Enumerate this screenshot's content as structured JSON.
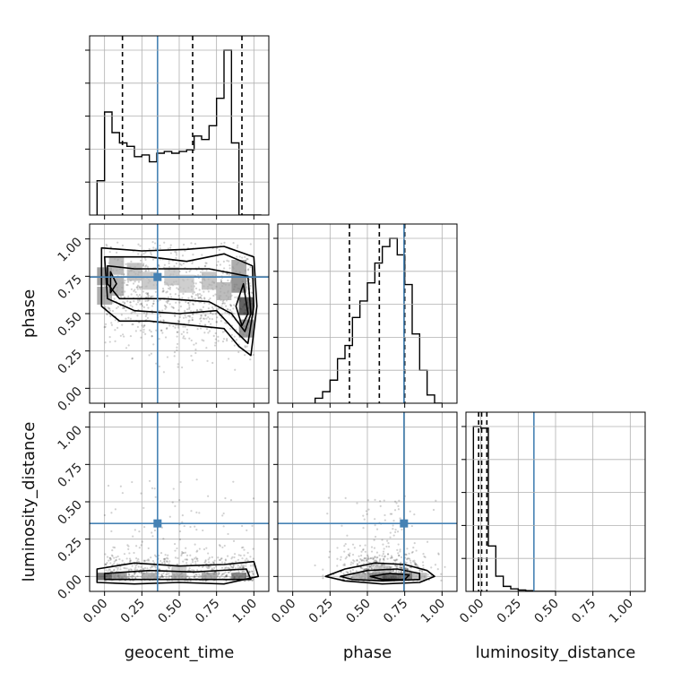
{
  "chart_data": {
    "type": "corner",
    "parameters": [
      "geocent_time",
      "phase",
      "luminosity_distance"
    ],
    "axis_range": [
      -0.1,
      1.1
    ],
    "ticks": [
      0,
      0.25,
      0.5,
      0.75,
      1
    ],
    "tick_labels": [
      "0.00",
      "0.25",
      "0.50",
      "0.75",
      "1.00"
    ],
    "xlabels": [
      "geocent_time",
      "phase",
      "luminosity_distance"
    ],
    "ylabels": [
      "",
      "phase",
      "luminosity_distance"
    ],
    "grid": true,
    "truth": {
      "color": "#4682b4",
      "values": [
        0.355,
        0.745,
        0.355
      ]
    },
    "histograms": [
      {
        "parameter": "geocent_time",
        "bin_edges": [
          -0.05,
          0.0,
          0.05,
          0.1,
          0.15,
          0.2,
          0.25,
          0.3,
          0.35,
          0.4,
          0.45,
          0.5,
          0.55,
          0.6,
          0.65,
          0.7,
          0.75,
          0.8,
          0.85,
          0.9,
          0.95,
          1.0,
          1.05
        ],
        "counts": [
          0.2,
          0.6,
          0.48,
          0.42,
          0.4,
          0.34,
          0.35,
          0.31,
          0.36,
          0.37,
          0.36,
          0.37,
          0.38,
          0.46,
          0.44,
          0.52,
          0.68,
          0.96,
          0.42,
          0.0,
          0.0,
          0.0
        ],
        "quantiles": [
          0.12,
          0.59,
          0.92
        ]
      },
      {
        "parameter": "phase",
        "bin_edges": [
          0.15,
          0.2,
          0.25,
          0.3,
          0.35,
          0.4,
          0.45,
          0.5,
          0.55,
          0.6,
          0.65,
          0.7,
          0.75,
          0.8,
          0.85,
          0.9,
          0.95,
          1.0
        ],
        "counts": [
          0.03,
          0.07,
          0.14,
          0.27,
          0.35,
          0.52,
          0.62,
          0.73,
          0.85,
          0.95,
          1.0,
          0.9,
          0.72,
          0.42,
          0.2,
          0.05,
          0.0
        ],
        "quantiles": [
          0.38,
          0.58,
          0.75
        ]
      },
      {
        "parameter": "luminosity_distance",
        "bin_edges": [
          -0.05,
          0.0,
          0.05,
          0.1,
          0.15,
          0.2,
          0.25,
          0.3,
          0.35,
          0.4,
          0.45,
          0.5
        ],
        "counts": [
          0.98,
          0.97,
          0.27,
          0.09,
          0.03,
          0.015,
          0.008,
          0.004,
          0.0,
          0.0,
          0.0
        ],
        "quantiles": [
          -0.015,
          0.005,
          0.04
        ]
      }
    ],
    "contours": [
      {
        "x_param": "geocent_time",
        "y_param": "phase",
        "density_cells": [
          {
            "x": 0.0,
            "y": 0.75,
            "d": 0.55
          },
          {
            "x": 0.0,
            "y": 0.62,
            "d": 0.45
          },
          {
            "x": 0.08,
            "y": 0.82,
            "d": 0.35
          },
          {
            "x": 0.08,
            "y": 0.68,
            "d": 0.4
          },
          {
            "x": 0.2,
            "y": 0.78,
            "d": 0.3
          },
          {
            "x": 0.3,
            "y": 0.72,
            "d": 0.25
          },
          {
            "x": 0.45,
            "y": 0.75,
            "d": 0.25
          },
          {
            "x": 0.55,
            "y": 0.7,
            "d": 0.22
          },
          {
            "x": 0.7,
            "y": 0.72,
            "d": 0.28
          },
          {
            "x": 0.8,
            "y": 0.65,
            "d": 0.35
          },
          {
            "x": 0.9,
            "y": 0.7,
            "d": 0.6
          },
          {
            "x": 0.95,
            "y": 0.55,
            "d": 0.95
          },
          {
            "x": 0.95,
            "y": 0.4,
            "d": 0.6
          },
          {
            "x": 0.9,
            "y": 0.8,
            "d": 0.45
          }
        ],
        "levels": [
          [
            [
              -0.02,
              0.94
            ],
            [
              0.25,
              0.92
            ],
            [
              0.55,
              0.93
            ],
            [
              0.8,
              0.95
            ],
            [
              1.0,
              0.88
            ],
            [
              1.02,
              0.55
            ],
            [
              0.98,
              0.22
            ],
            [
              0.9,
              0.28
            ],
            [
              0.8,
              0.4
            ],
            [
              0.6,
              0.42
            ],
            [
              0.3,
              0.45
            ],
            [
              0.1,
              0.45
            ],
            [
              -0.02,
              0.55
            ]
          ],
          [
            [
              0.0,
              0.88
            ],
            [
              0.3,
              0.88
            ],
            [
              0.55,
              0.85
            ],
            [
              0.8,
              0.9
            ],
            [
              0.99,
              0.82
            ],
            [
              1.0,
              0.55
            ],
            [
              0.96,
              0.3
            ],
            [
              0.88,
              0.38
            ],
            [
              0.75,
              0.52
            ],
            [
              0.5,
              0.5
            ],
            [
              0.2,
              0.52
            ],
            [
              0.02,
              0.6
            ]
          ],
          [
            [
              0.02,
              0.82
            ],
            [
              0.2,
              0.8
            ],
            [
              0.45,
              0.8
            ],
            [
              0.7,
              0.8
            ],
            [
              0.96,
              0.75
            ],
            [
              0.98,
              0.5
            ],
            [
              0.94,
              0.38
            ],
            [
              0.85,
              0.5
            ],
            [
              0.7,
              0.58
            ],
            [
              0.4,
              0.6
            ],
            [
              0.1,
              0.6
            ],
            [
              0.02,
              0.7
            ]
          ],
          [
            [
              0.04,
              0.78
            ],
            [
              0.08,
              0.7
            ],
            [
              0.04,
              0.64
            ]
          ],
          [
            [
              0.93,
              0.7
            ],
            [
              0.96,
              0.5
            ],
            [
              0.92,
              0.42
            ],
            [
              0.88,
              0.55
            ]
          ]
        ]
      },
      {
        "x_param": "geocent_time",
        "y_param": "luminosity_distance",
        "density_cells": [
          {
            "x": 0.0,
            "y": 0.0,
            "d": 0.8
          },
          {
            "x": 0.1,
            "y": 0.0,
            "d": 0.5
          },
          {
            "x": 0.3,
            "y": 0.0,
            "d": 0.4
          },
          {
            "x": 0.5,
            "y": 0.0,
            "d": 0.4
          },
          {
            "x": 0.7,
            "y": 0.0,
            "d": 0.45
          },
          {
            "x": 0.9,
            "y": 0.0,
            "d": 0.7
          },
          {
            "x": 0.5,
            "y": 0.05,
            "d": 0.2
          }
        ],
        "levels": [
          [
            [
              -0.05,
              0.05
            ],
            [
              0.2,
              0.09
            ],
            [
              0.5,
              0.07
            ],
            [
              0.8,
              0.08
            ],
            [
              1.0,
              0.1
            ],
            [
              1.03,
              0.0
            ],
            [
              0.8,
              -0.05
            ],
            [
              0.5,
              -0.04
            ],
            [
              0.2,
              -0.05
            ],
            [
              -0.05,
              -0.04
            ]
          ],
          [
            [
              0.0,
              0.02
            ],
            [
              0.3,
              0.04
            ],
            [
              0.6,
              0.03
            ],
            [
              0.95,
              0.05
            ],
            [
              0.98,
              -0.02
            ],
            [
              0.6,
              -0.02
            ],
            [
              0.3,
              -0.02
            ],
            [
              0.0,
              -0.02
            ]
          ]
        ]
      },
      {
        "x_param": "phase",
        "y_param": "luminosity_distance",
        "density_cells": [
          {
            "x": 0.45,
            "y": 0.0,
            "d": 0.35
          },
          {
            "x": 0.55,
            "y": 0.0,
            "d": 0.55
          },
          {
            "x": 0.65,
            "y": 0.0,
            "d": 0.8
          },
          {
            "x": 0.75,
            "y": 0.0,
            "d": 0.7
          },
          {
            "x": 0.85,
            "y": 0.0,
            "d": 0.3
          },
          {
            "x": 0.6,
            "y": 0.05,
            "d": 0.25
          }
        ],
        "levels": [
          [
            [
              0.22,
              0.0
            ],
            [
              0.35,
              0.05
            ],
            [
              0.55,
              0.09
            ],
            [
              0.75,
              0.08
            ],
            [
              0.9,
              0.04
            ],
            [
              0.95,
              0.0
            ],
            [
              0.85,
              -0.04
            ],
            [
              0.6,
              -0.05
            ],
            [
              0.35,
              -0.03
            ]
          ],
          [
            [
              0.32,
              0.0
            ],
            [
              0.5,
              0.04
            ],
            [
              0.7,
              0.05
            ],
            [
              0.85,
              0.02
            ],
            [
              0.85,
              -0.02
            ],
            [
              0.6,
              -0.03
            ],
            [
              0.4,
              -0.02
            ]
          ],
          [
            [
              0.52,
              0.0
            ],
            [
              0.65,
              0.02
            ],
            [
              0.78,
              0.01
            ],
            [
              0.75,
              -0.02
            ],
            [
              0.6,
              -0.02
            ]
          ]
        ]
      }
    ],
    "scatter_density": {
      "geocent_time_phase": {
        "x_range": [
          0.0,
          1.0
        ],
        "y_range": [
          0.1,
          0.98
        ],
        "count": 900
      },
      "geocent_time_luminosity_distance": {
        "x_range": [
          0.0,
          1.0
        ],
        "y_range": [
          -0.05,
          0.7
        ],
        "count": 700
      },
      "phase_luminosity_distance": {
        "x_range": [
          0.2,
          0.98
        ],
        "y_range": [
          -0.05,
          0.6
        ],
        "count": 700
      }
    }
  }
}
